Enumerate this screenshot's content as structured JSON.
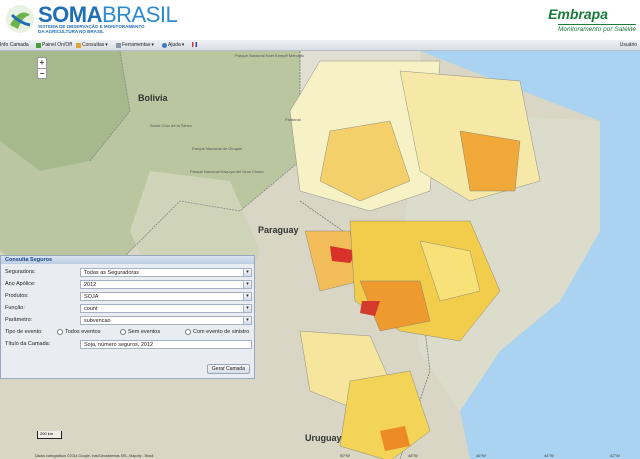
{
  "brand": {
    "name_bold": "SOMA",
    "name_light": "BRASIL",
    "tagline": "SISTEMA DE OBSERVAÇÃO E MONITORAMENTO DA AGRICULTURA NO BRASIL"
  },
  "partner": {
    "name": "Embrapa",
    "subtitle": "Monitoramento por Satélite"
  },
  "toolbar": {
    "items": [
      "Info Camada",
      "Painel On/Off",
      "Consultas",
      "Ferramentas",
      "Ajuda"
    ],
    "user": "Usuário"
  },
  "map": {
    "labels": {
      "bolivia": "Bolivia",
      "paraguay": "Paraguay",
      "uruguay": "Uruguay"
    },
    "sublabels": {
      "park1": "Parque Nacional Noel Kempff Mercado",
      "park2": "Parque Nacional de Otuquis",
      "park3": "Parque Nacional Kaa-Iya del Gran Chaco",
      "serra": "Santa Cruz de la Sierra",
      "pantanal": "Pantanal"
    },
    "lon_ticks": [
      "50°W",
      "48°W",
      "46°W",
      "44°W",
      "42°W"
    ],
    "attribution": "Dados cartográficos ©2014 Google, Inav/Geosistemas SRL, Mapcity - Brasil",
    "scale_label": "200 km"
  },
  "consulta": {
    "title": "Consulta Seguros",
    "fields": [
      {
        "label": "Seguradora:",
        "value": "Todas as Seguradoras"
      },
      {
        "label": "Ano Apólice:",
        "value": "2012"
      },
      {
        "label": "Produtos:",
        "value": "SOJA"
      },
      {
        "label": "Função:",
        "value": "count"
      },
      {
        "label": "Parâmetro:",
        "value": "subvencao"
      }
    ],
    "event_label": "Tipo de evento:",
    "event_options": [
      "Todos eventos",
      "Sem eventos",
      "Com evento de sinistro"
    ],
    "title_label": "Título da Camada:",
    "title_value": "Soja, número seguros, 2012",
    "submit_label": "Gerar Camada"
  },
  "colors": {
    "brand_blue": "#1f6fb7",
    "embrapa_green": "#1a7b3a",
    "panel_bg": "#e9edf2"
  }
}
